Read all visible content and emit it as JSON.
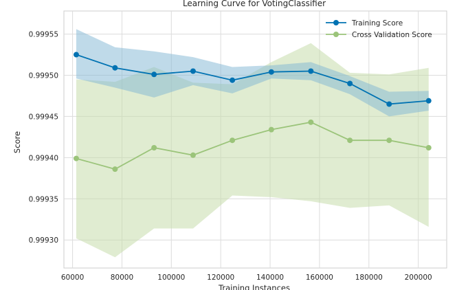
{
  "chart_data": {
    "type": "line",
    "title": "Learning Curve for VotingClassifier",
    "xlabel": "Training Instances",
    "ylabel": "Score",
    "xlim": [
      56500,
      211500
    ],
    "ylim": [
      0.999266,
      0.999578
    ],
    "xticks": [
      60000,
      80000,
      100000,
      120000,
      140000,
      160000,
      180000,
      200000
    ],
    "xtick_labels": [
      "60000",
      "80000",
      "100000",
      "120000",
      "140000",
      "160000",
      "180000",
      "200000"
    ],
    "yticks": [
      0.9993,
      0.99935,
      0.9994,
      0.99945,
      0.9995,
      0.99955
    ],
    "ytick_labels": [
      "0.99930",
      "0.99935",
      "0.99940",
      "0.99945",
      "0.99950",
      "0.99955"
    ],
    "grid": true,
    "legend_position": "top-right",
    "x": [
      61500,
      77200,
      93000,
      108800,
      124700,
      140500,
      156500,
      172300,
      188200,
      204200
    ],
    "series": [
      {
        "name": "Training Score",
        "color": "#0072b2",
        "band_color": "#a6cde1",
        "values": [
          0.999525,
          0.999509,
          0.999501,
          0.999505,
          0.999494,
          0.999504,
          0.999505,
          0.99949,
          0.999465,
          0.999469
        ],
        "band_upper": [
          0.999556,
          0.999534,
          0.999529,
          0.999522,
          0.99951,
          0.999512,
          0.999516,
          0.999499,
          0.99948,
          0.999481
        ],
        "band_lower": [
          0.999496,
          0.999485,
          0.999473,
          0.999488,
          0.999478,
          0.999496,
          0.999494,
          0.999477,
          0.99945,
          0.999457
        ]
      },
      {
        "name": "Cross Validation Score",
        "color": "#9bc47a",
        "band_color": "#dde9c6",
        "values": [
          0.999399,
          0.999386,
          0.999412,
          0.999403,
          0.999421,
          0.999434,
          0.999443,
          0.999421,
          0.999421,
          0.999412
        ],
        "band_upper": [
          0.999495,
          0.999492,
          0.99951,
          0.999491,
          0.999489,
          0.999516,
          0.999539,
          0.999503,
          0.999501,
          0.999509
        ],
        "band_lower": [
          0.999302,
          0.999279,
          0.999314,
          0.999314,
          0.999354,
          0.999352,
          0.999347,
          0.999339,
          0.999342,
          0.999316
        ]
      }
    ]
  }
}
